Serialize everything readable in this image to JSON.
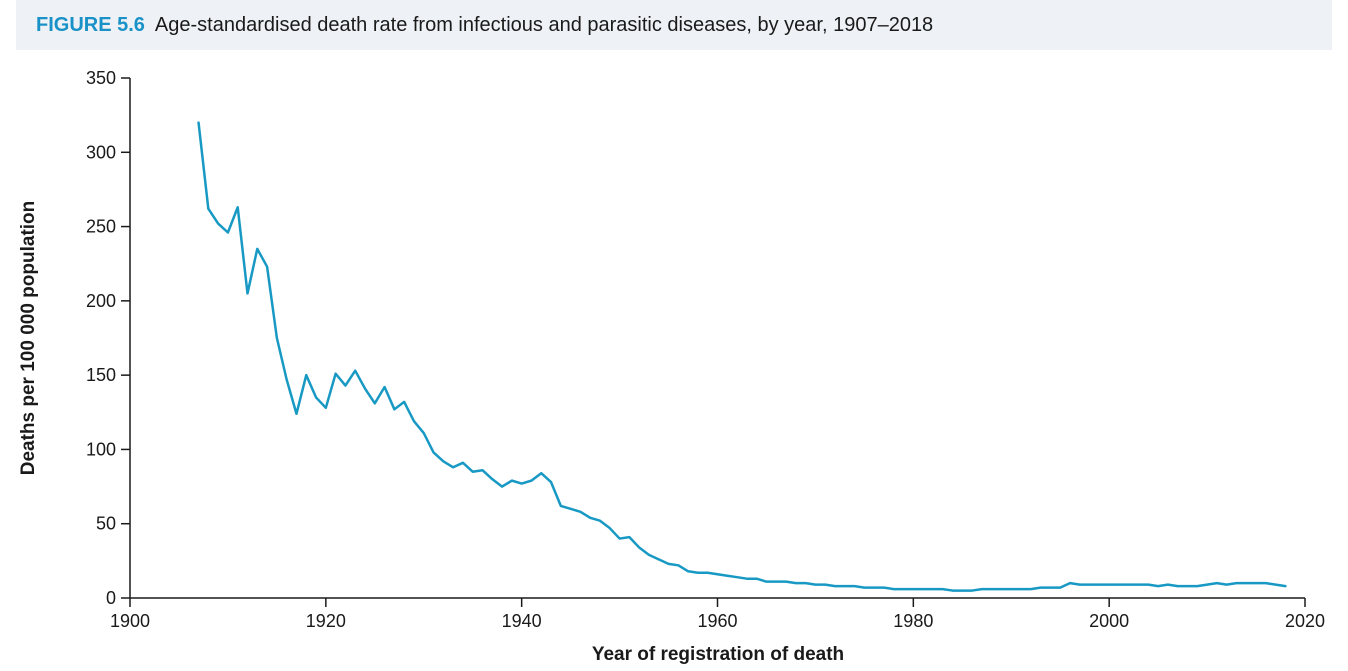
{
  "figure": {
    "label": "FIGURE 5.6",
    "title": "Age-standardised death rate from infectious and parasitic diseases, by year, 1907–2018"
  },
  "colors": {
    "accent": "#1a92c8",
    "line": "#1899c4",
    "header_bg": "#eef2f6",
    "axis": "#1a1a1a"
  },
  "chart_data": {
    "type": "line",
    "xlabel": "Year of registration of death",
    "ylabel": "Deaths per 100 000 population",
    "xlim": [
      1900,
      2020
    ],
    "ylim": [
      0,
      350
    ],
    "xticks": [
      "1900",
      "1920",
      "1940",
      "1960",
      "1980",
      "2000",
      "2020"
    ],
    "yticks": [
      "0",
      "50",
      "100",
      "150",
      "200",
      "250",
      "300",
      "350"
    ],
    "grid": false,
    "legend": "none",
    "series": [
      {
        "x": [
          1907,
          1908,
          1909,
          1910,
          1911,
          1912,
          1913,
          1914,
          1915,
          1916,
          1917,
          1918,
          1919,
          1920,
          1921,
          1922,
          1923,
          1924,
          1925,
          1926,
          1927,
          1928,
          1929,
          1930,
          1931,
          1932,
          1933,
          1934,
          1935,
          1936,
          1937,
          1938,
          1939,
          1940,
          1941,
          1942,
          1943,
          1944,
          1945,
          1946,
          1947,
          1948,
          1949,
          1950,
          1951,
          1952,
          1953,
          1954,
          1955,
          1956,
          1957,
          1958,
          1959,
          1960,
          1961,
          1962,
          1963,
          1964,
          1965,
          1966,
          1967,
          1968,
          1969,
          1970,
          1971,
          1972,
          1973,
          1974,
          1975,
          1976,
          1977,
          1978,
          1979,
          1980,
          1981,
          1982,
          1983,
          1984,
          1985,
          1986,
          1987,
          1988,
          1989,
          1990,
          1991,
          1992,
          1993,
          1994,
          1995,
          1996,
          1997,
          1998,
          1999,
          2000,
          2001,
          2002,
          2003,
          2004,
          2005,
          2006,
          2007,
          2008,
          2009,
          2010,
          2011,
          2012,
          2013,
          2014,
          2015,
          2016,
          2017,
          2018
        ],
        "values": [
          320,
          262,
          252,
          246,
          263,
          205,
          235,
          223,
          175,
          147,
          124,
          150,
          135,
          128,
          151,
          143,
          153,
          141,
          131,
          142,
          127,
          132,
          119,
          111,
          98,
          92,
          88,
          91,
          85,
          86,
          80,
          75,
          79,
          77,
          79,
          84,
          78,
          62,
          60,
          58,
          54,
          52,
          47,
          40,
          41,
          34,
          29,
          26,
          23,
          22,
          18,
          17,
          17,
          16,
          15,
          14,
          13,
          13,
          11,
          11,
          11,
          10,
          10,
          9,
          9,
          8,
          8,
          8,
          7,
          7,
          7,
          6,
          6,
          6,
          6,
          6,
          6,
          5,
          5,
          5,
          6,
          6,
          6,
          6,
          6,
          6,
          7,
          7,
          7,
          10,
          9,
          9,
          9,
          9,
          9,
          9,
          9,
          9,
          8,
          9,
          8,
          8,
          8,
          9,
          10,
          9,
          10,
          10,
          10,
          10,
          9,
          8
        ]
      }
    ]
  }
}
